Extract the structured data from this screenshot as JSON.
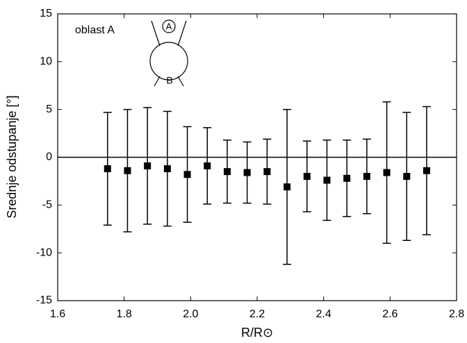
{
  "chart_data": {
    "type": "scatter",
    "x_label": "R/R⊙",
    "y_label": "Srednje odstupanje [°]",
    "annotation": "oblast  A",
    "diagram_labels": [
      "A",
      "B"
    ],
    "x": [
      1.75,
      1.81,
      1.87,
      1.93,
      1.99,
      2.05,
      2.11,
      2.17,
      2.23,
      2.29,
      2.35,
      2.41,
      2.47,
      2.53,
      2.59,
      2.65,
      2.71
    ],
    "values": [
      -1.2,
      -1.4,
      -0.9,
      -1.2,
      -1.8,
      -0.9,
      -1.5,
      -1.6,
      -1.5,
      -3.1,
      -2.0,
      -2.4,
      -2.2,
      -2.0,
      -1.6,
      -2.0,
      -1.4
    ],
    "errors": [
      5.9,
      6.4,
      6.1,
      6.0,
      5.0,
      4.0,
      3.3,
      3.2,
      3.4,
      8.1,
      3.7,
      4.2,
      4.0,
      3.9,
      7.4,
      6.7,
      6.7
    ],
    "color": "#000000",
    "hline": 0,
    "xlim": [
      1.6,
      2.8
    ],
    "xticks": [
      1.6,
      1.8,
      {
        "value": 2,
        "label": "2.0"
      },
      2.2,
      2.4,
      2.6,
      2.8
    ],
    "ylim": [
      -15,
      15
    ],
    "yticks": [
      -15,
      -10,
      -5,
      0,
      5,
      10,
      15
    ]
  }
}
